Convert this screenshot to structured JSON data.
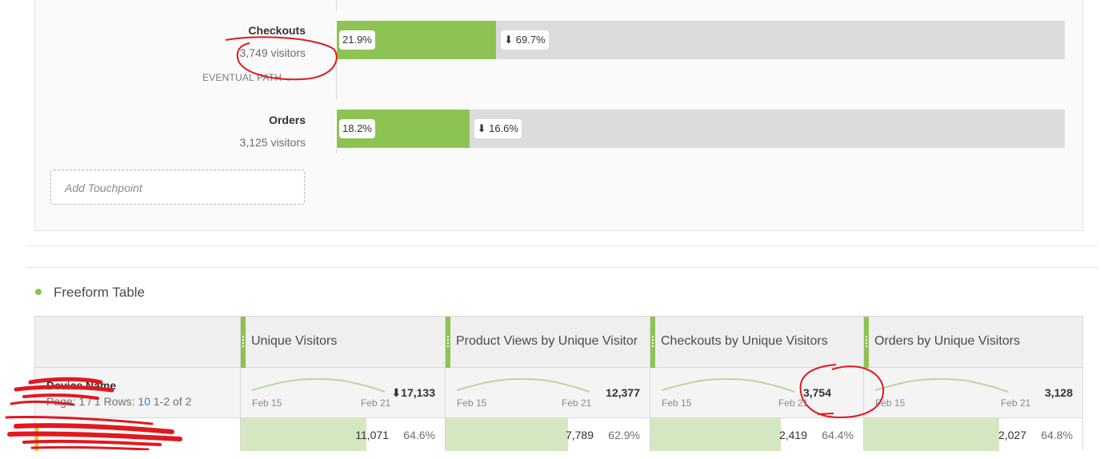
{
  "fallout": {
    "steps": [
      {
        "name": "Checkouts",
        "visitors": "3,749 visitors",
        "pct": "21.9%",
        "fill": 0.219,
        "drop": "⬇ 69.7%"
      },
      {
        "name": "Orders",
        "visitors": "3,125 visitors",
        "pct": "18.2%",
        "fill": 0.182,
        "drop": "⬇ 16.6%"
      }
    ],
    "eventual_path": "EVENTUAL PATH",
    "add_touchpoint": "Add Touchpoint"
  },
  "freeform": {
    "title": "Freeform Table",
    "dimension": "Device Name",
    "page_label": "Page: 1 / 1 Rows:",
    "rows_per_page": "10",
    "range": "1-2 of 2",
    "columns": [
      {
        "title": "Unique Visitors",
        "total": "⬇17,133",
        "date_start": "Feb 15",
        "date_end": "Feb 21",
        "row_value": "11,071",
        "row_pct": "64.6%",
        "row_fill": 0.646
      },
      {
        "title": "Product Views by Unique Visitor",
        "total": "12,377",
        "date_start": "Feb 15",
        "date_end": "Feb 21",
        "row_value": "7,789",
        "row_pct": "62.9%",
        "row_fill": 0.629
      },
      {
        "title": "Checkouts by Unique Visitors",
        "total": "3,754",
        "date_start": "Feb 15",
        "date_end": "Feb 21",
        "row_value": "2,419",
        "row_pct": "64.4%",
        "row_fill": 0.644
      },
      {
        "title": "Orders by Unique Visitors",
        "total": "3,128",
        "date_start": "Feb 15",
        "date_end": "Feb 21",
        "row_value": "2,027",
        "row_pct": "64.8%",
        "row_fill": 0.648
      }
    ]
  },
  "colors": {
    "accent": "#8dc353",
    "bar_track": "#dcdcdc",
    "row_bar": "#d5e7c1",
    "annotation": "#e0191f"
  }
}
